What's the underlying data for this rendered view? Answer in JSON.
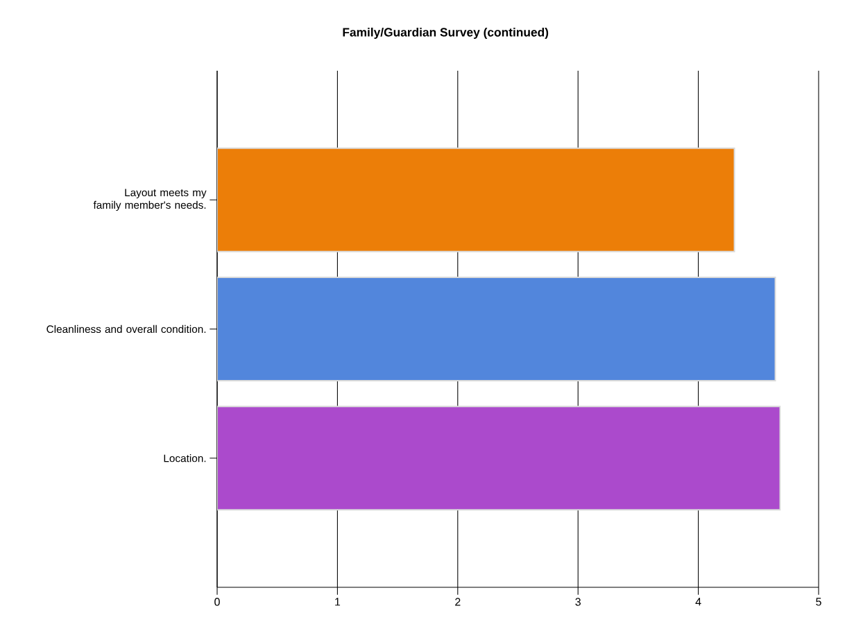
{
  "chart_data": {
    "type": "bar",
    "orientation": "horizontal",
    "title": "Family/Guardian Survey (continued)",
    "categories": [
      "Layout meets my family member's needs.",
      "Cleanliness and overall condition.",
      "Location."
    ],
    "values": [
      4.3,
      4.64,
      4.68
    ],
    "colors": [
      "#ec7e08",
      "#5286dc",
      "#ab4acc"
    ],
    "xlim": [
      0,
      5
    ],
    "xticks": [
      0,
      1,
      2,
      3,
      4,
      5
    ],
    "grid": "x"
  }
}
